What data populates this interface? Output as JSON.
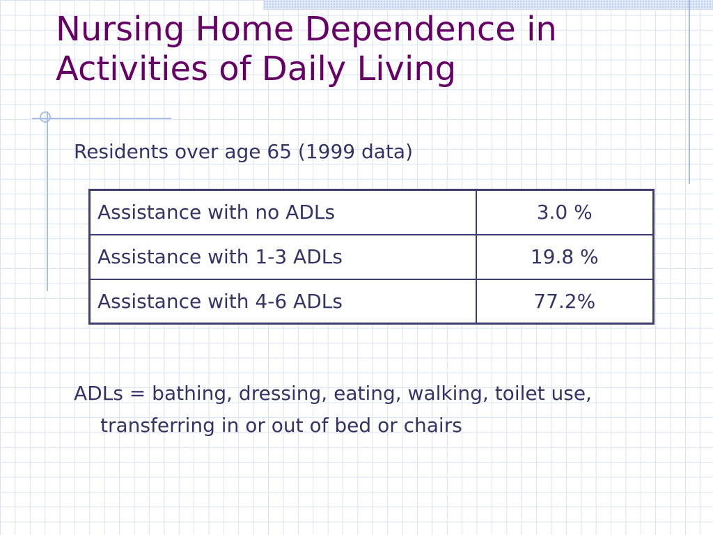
{
  "slide": {
    "title_line1": "Nursing Home Dependence in",
    "title_line2": "Activities of Daily Living",
    "subtitle": "Residents over age 65 (1999 data)",
    "table": {
      "rows": [
        {
          "label": "Assistance with no ADLs",
          "value": "3.0 %"
        },
        {
          "label": "Assistance with 1-3 ADLs",
          "value": "19.8 %"
        },
        {
          "label": "Assistance with 4-6 ADLs",
          "value": "77.2%"
        }
      ]
    },
    "note": "ADLs = bathing, dressing, eating, walking, toilet use, transferring in or out of bed or chairs"
  },
  "colors": {
    "title": "#660066",
    "body_text": "#333366",
    "table_border": "#3d3d73",
    "grid": "#d9e2f2",
    "accent_lines": "#a9bde3"
  }
}
